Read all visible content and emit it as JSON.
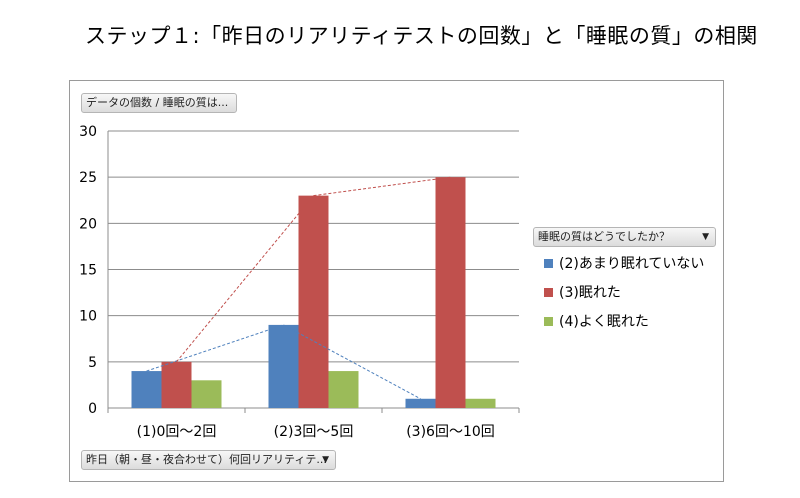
{
  "title": "ステップ１:「昨日のリアリティテストの回数」と「睡眠の質」の相関",
  "data_field_label": "データの個数 / 睡眠の質は...",
  "row_field_label": "昨日（朝・昼・夜合わせて）何回リアリティテ...",
  "legend_field_label": "睡眠の質はどうでしたか？",
  "dropdown_arrow": "▼",
  "chart_data": {
    "type": "bar",
    "title": "",
    "xlabel": "",
    "ylabel": "",
    "categories": [
      "(1)0回〜2回",
      "(2)3回〜5回",
      "(3)6回〜10回"
    ],
    "series": [
      {
        "name": "(2)あまり眠れていない",
        "values": [
          4,
          9,
          1
        ],
        "color": "#4f81bd"
      },
      {
        "name": "(3)眠れた",
        "values": [
          5,
          23,
          25
        ],
        "color": "#c0504d"
      },
      {
        "name": "(4)よく眠れた",
        "values": [
          3,
          4,
          1
        ],
        "color": "#9bbb59"
      }
    ],
    "ylim": [
      0,
      30
    ],
    "yticks": [
      0,
      5,
      10,
      15,
      20,
      25,
      30
    ],
    "grid": true,
    "legend_position": "right",
    "trendline_series": [
      "(2)あまり眠れていない",
      "(3)眠れた"
    ]
  }
}
